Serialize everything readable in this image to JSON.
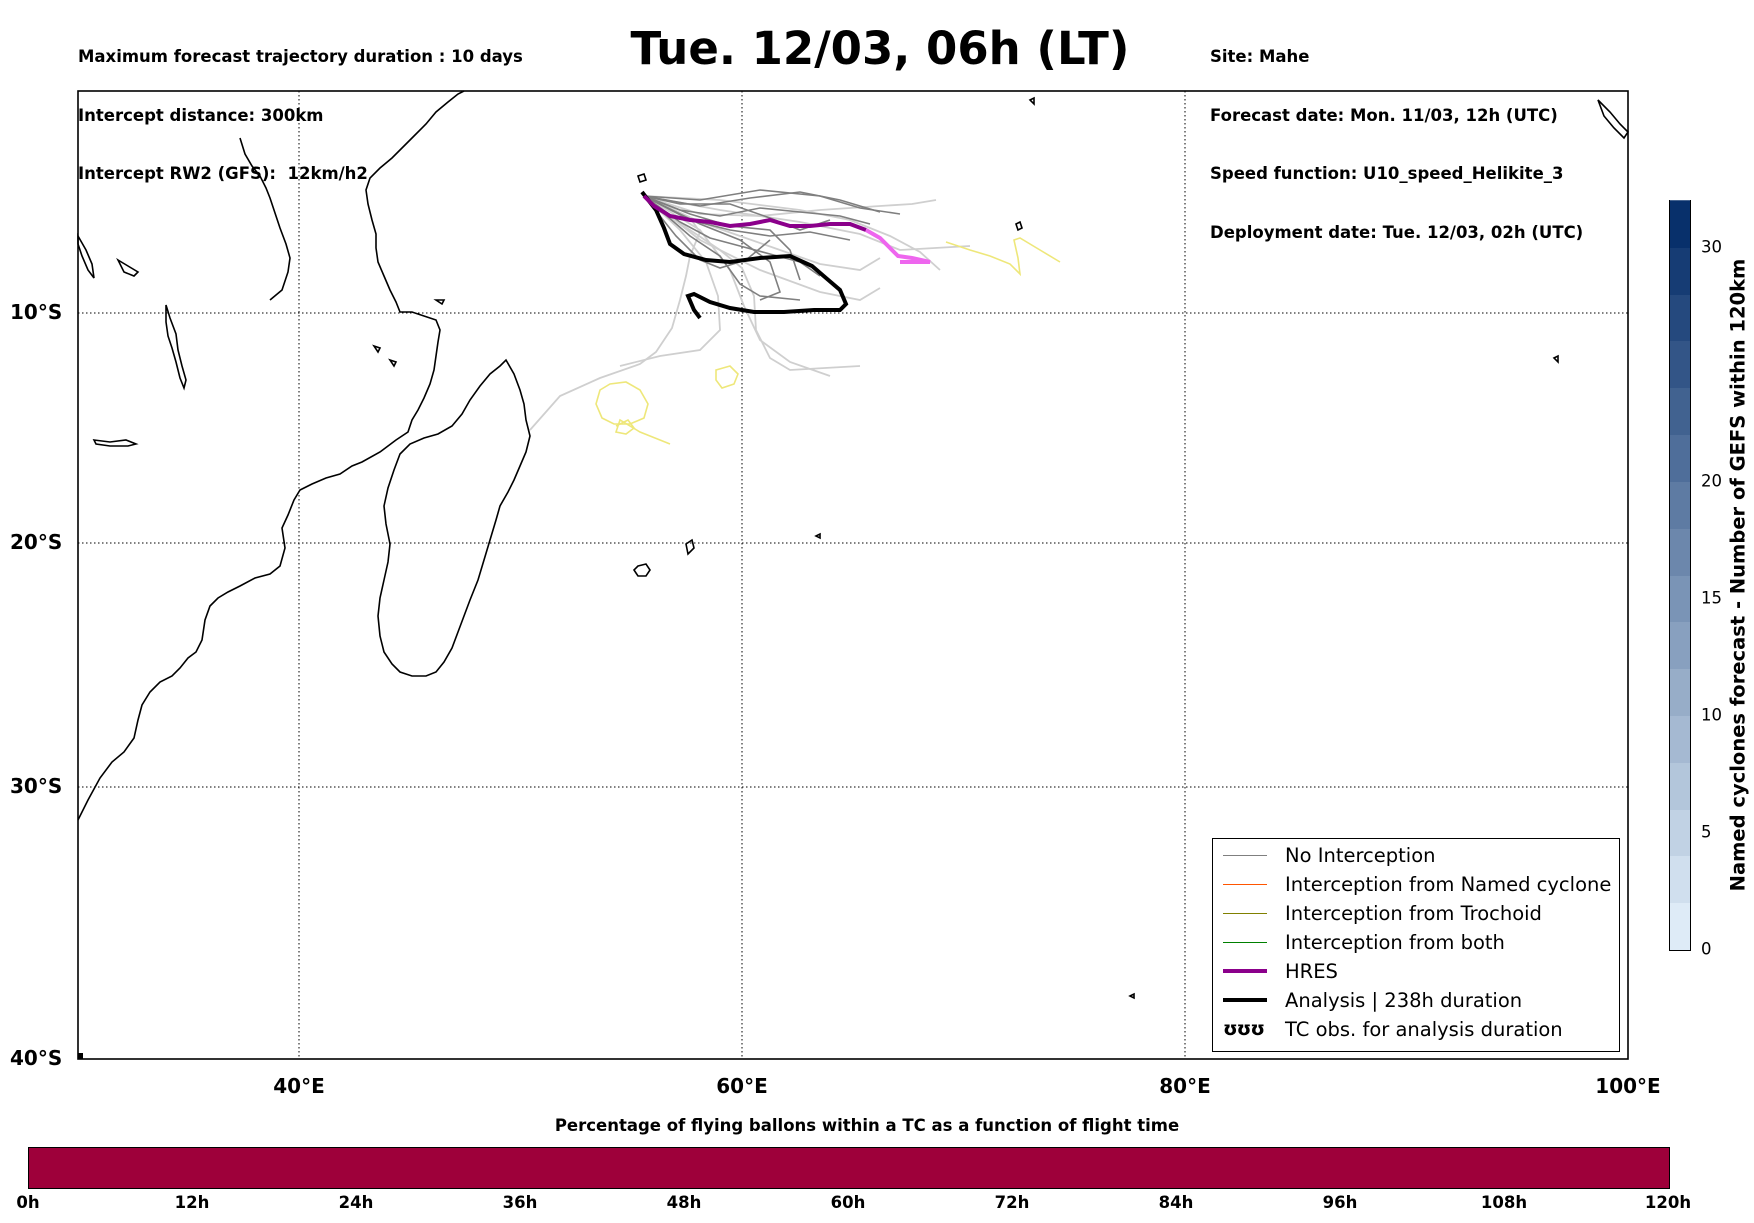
{
  "header_left": [
    "Maximum forecast trajectory duration : 10 days",
    "Intercept distance: 300km",
    "Intercept RW2 (GFS):  12km/h2"
  ],
  "title": "Tue. 12/03, 06h (LT)",
  "header_right": [
    "Site: Mahe",
    "Forecast date: Mon. 11/03, 12h (UTC)",
    "Speed function: U10_speed_Helikite_3",
    "Deployment date: Tue. 12/03, 02h (UTC)"
  ],
  "map": {
    "lon_range": [
      30,
      100
    ],
    "lat_range": [
      -40,
      0
    ],
    "lat_ticks": [
      "10°S",
      "20°S",
      "30°S",
      "40°S"
    ],
    "lon_ticks": [
      "40°E",
      "60°E",
      "80°E",
      "100°E"
    ],
    "gridlines": true,
    "colors": {
      "no_interception": "#7f7f7f",
      "gefs_light": "#cfcfcf",
      "hres": "#8b008b",
      "hres_end": "#ee66ee",
      "analysis": "#000000",
      "tc_obs": "#eee77a"
    }
  },
  "legend": {
    "position": "bottom-right",
    "items": [
      {
        "label": "No Interception",
        "color": "#7f7f7f",
        "width": 1
      },
      {
        "label": "Interception from Named cyclone",
        "color": "#ff5500",
        "width": 1
      },
      {
        "label": "Interception from Trochoid",
        "color": "#808000",
        "width": 1
      },
      {
        "label": "Interception from both",
        "color": "#008000",
        "width": 1
      },
      {
        "label": "HRES",
        "color": "#8b008b",
        "width": 4
      },
      {
        "label": "Analysis | 238h duration",
        "color": "#000000",
        "width": 4
      },
      {
        "label": "TC obs. for analysis duration",
        "color": "#000000",
        "width": 0,
        "symbol": "ʊʊʊ"
      }
    ]
  },
  "colorbar_right": {
    "title": "Named cyclones forecast - Number of GEFS within 120km",
    "ticks": [
      "0",
      "5",
      "10",
      "15",
      "20",
      "30"
    ],
    "tick_values": [
      0,
      5,
      10,
      15,
      20,
      30
    ],
    "max": 32
  },
  "bottom_bar": {
    "title": "Percentage of flying ballons within a TC as a function of flight time",
    "color": "#9e003a",
    "time_labels": [
      "0h",
      "12h",
      "24h",
      "36h",
      "48h",
      "60h",
      "72h",
      "84h",
      "96h",
      "108h",
      "120h"
    ]
  }
}
